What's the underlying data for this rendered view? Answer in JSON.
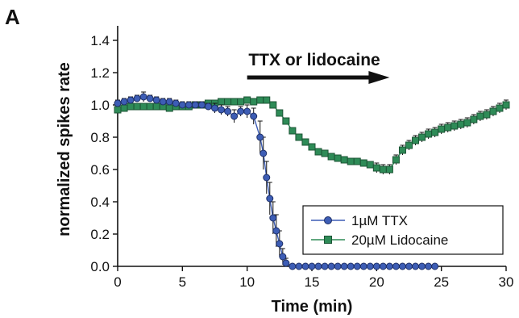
{
  "panel_label": "A",
  "chart_data": {
    "type": "line",
    "title": "",
    "xlabel": "Time (min)",
    "ylabel": "normalized spikes rate",
    "xlim": [
      0,
      30
    ],
    "ylim": [
      0,
      1.45
    ],
    "xticks": [
      0,
      5,
      10,
      15,
      20,
      25,
      30
    ],
    "yticks": [
      0.0,
      0.2,
      0.4,
      0.6,
      0.8,
      1.0,
      1.2,
      1.4
    ],
    "ytick_labels": [
      "0.0",
      "0.2",
      "0.4",
      "0.6",
      "0.8",
      "1.0",
      "1.2",
      "1.4"
    ],
    "grid": false,
    "legend_position": "bottom-right",
    "annotation": {
      "text": "TTX or lidocaine",
      "arrow_from": [
        10,
        1.17
      ],
      "arrow_to": [
        21,
        1.17
      ]
    },
    "series": [
      {
        "name": "1µM TTX",
        "color": "#3d5db5",
        "marker": "circle",
        "x": [
          0,
          0.5,
          1,
          1.5,
          2,
          2.5,
          3,
          3.5,
          4,
          4.5,
          5,
          5.5,
          6,
          6.5,
          7,
          7.5,
          8,
          8.5,
          9,
          9.5,
          10,
          10.5,
          11,
          11.25,
          11.5,
          11.75,
          12,
          12.25,
          12.5,
          12.75,
          13,
          13.5,
          14,
          14.5,
          15,
          15.5,
          16,
          16.5,
          17,
          17.5,
          18,
          18.5,
          19,
          19.5,
          20,
          20.5,
          21,
          21.5,
          22,
          22.5,
          23,
          23.5,
          24,
          24.5
        ],
        "y": [
          1.01,
          1.02,
          1.03,
          1.04,
          1.05,
          1.04,
          1.03,
          1.02,
          1.02,
          1.01,
          1.0,
          1.0,
          1.0,
          1.0,
          0.99,
          0.98,
          0.97,
          0.96,
          0.93,
          0.96,
          0.96,
          0.93,
          0.8,
          0.7,
          0.55,
          0.42,
          0.3,
          0.22,
          0.14,
          0.06,
          0.02,
          0.0,
          0.0,
          0.0,
          0.0,
          0.0,
          0.0,
          0.0,
          0.0,
          0.0,
          0.0,
          0.0,
          0.0,
          0.0,
          0.0,
          0.0,
          0.0,
          0.0,
          0.0,
          0.0,
          0.0,
          0.0,
          0.0,
          0.0
        ],
        "error": [
          0.02,
          0.02,
          0.02,
          0.02,
          0.03,
          0.02,
          0.02,
          0.02,
          0.02,
          0.02,
          0.02,
          0.02,
          0.02,
          0.02,
          0.02,
          0.03,
          0.03,
          0.03,
          0.04,
          0.03,
          0.04,
          0.05,
          0.1,
          0.1,
          0.1,
          0.1,
          0.1,
          0.1,
          0.08,
          0.05,
          0.03,
          0,
          0,
          0,
          0,
          0,
          0,
          0,
          0,
          0,
          0,
          0,
          0,
          0,
          0,
          0,
          0,
          0,
          0,
          0,
          0,
          0,
          0,
          0
        ]
      },
      {
        "name": "20µM Lidocaine",
        "color": "#2e8b57",
        "marker": "square",
        "x": [
          0,
          0.5,
          1,
          1.5,
          2,
          2.5,
          3,
          3.5,
          4,
          4.5,
          5,
          5.5,
          6,
          6.5,
          7,
          7.5,
          8,
          8.5,
          9,
          9.5,
          10,
          10.5,
          11,
          11.5,
          12,
          12.5,
          13,
          13.5,
          14,
          14.5,
          15,
          15.5,
          16,
          16.5,
          17,
          17.5,
          18,
          18.5,
          19,
          19.5,
          20,
          20.5,
          21,
          21.5,
          22,
          22.5,
          23,
          23.5,
          24,
          24.5,
          25,
          25.5,
          26,
          26.5,
          27,
          27.5,
          28,
          28.5,
          29,
          29.5,
          30
        ],
        "y": [
          0.97,
          0.98,
          0.99,
          0.99,
          0.99,
          0.99,
          0.99,
          0.99,
          0.98,
          0.99,
          0.99,
          0.99,
          1.0,
          1.0,
          1.01,
          1.01,
          1.02,
          1.02,
          1.02,
          1.02,
          1.03,
          1.02,
          1.03,
          1.03,
          1.0,
          0.95,
          0.9,
          0.84,
          0.8,
          0.77,
          0.74,
          0.71,
          0.7,
          0.68,
          0.67,
          0.66,
          0.65,
          0.65,
          0.64,
          0.63,
          0.61,
          0.6,
          0.6,
          0.66,
          0.72,
          0.75,
          0.78,
          0.8,
          0.82,
          0.83,
          0.85,
          0.86,
          0.87,
          0.88,
          0.89,
          0.91,
          0.93,
          0.94,
          0.96,
          0.98,
          1.0
        ],
        "error": [
          0.02,
          0.02,
          0.02,
          0.02,
          0.02,
          0.02,
          0.02,
          0.02,
          0.02,
          0.02,
          0.02,
          0.02,
          0.02,
          0.02,
          0.02,
          0.02,
          0.02,
          0.02,
          0.02,
          0.02,
          0.02,
          0.02,
          0.02,
          0.02,
          0.02,
          0.02,
          0.02,
          0.02,
          0.02,
          0.02,
          0.02,
          0.02,
          0.02,
          0.02,
          0.02,
          0.02,
          0.02,
          0.02,
          0.02,
          0.02,
          0.03,
          0.03,
          0.03,
          0.03,
          0.03,
          0.03,
          0.03,
          0.03,
          0.03,
          0.03,
          0.03,
          0.03,
          0.03,
          0.03,
          0.03,
          0.03,
          0.03,
          0.03,
          0.03,
          0.03,
          0.03
        ]
      }
    ]
  }
}
